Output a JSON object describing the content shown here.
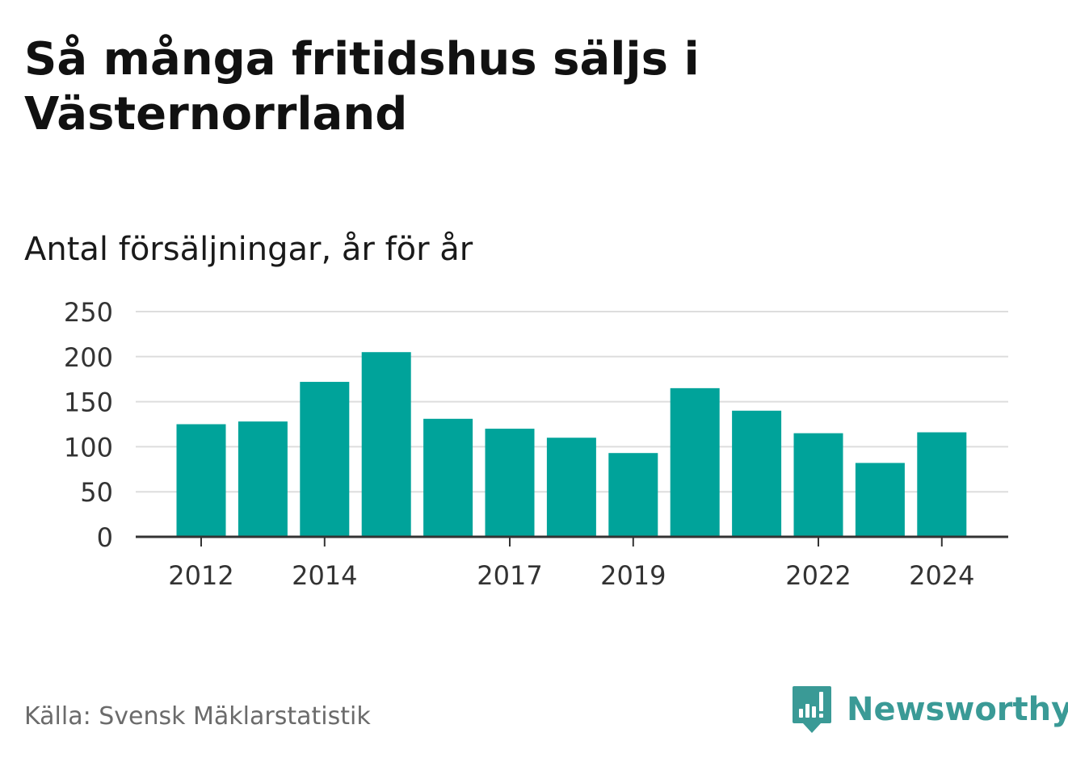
{
  "title": "Så många fritidshus säljs i Västernorrland",
  "subtitle": "Antal försäljningar, år för år",
  "source": "Källa: Svensk Mäklarstatistik",
  "brand": {
    "name": "Newsworthy",
    "icon": "newsworthy-logo-icon",
    "color": "#3a9a96"
  },
  "chart_data": {
    "type": "bar",
    "categories": [
      "2012",
      "2013",
      "2014",
      "2015",
      "2016",
      "2017",
      "2018",
      "2019",
      "2020",
      "2021",
      "2022",
      "2023",
      "2024"
    ],
    "values": [
      125,
      128,
      172,
      205,
      131,
      120,
      110,
      93,
      165,
      140,
      115,
      82,
      116
    ],
    "x_tick_labels": [
      "2012",
      "2014",
      "2017",
      "2019",
      "2022",
      "2024"
    ],
    "y_ticks": [
      0,
      50,
      100,
      150,
      200,
      250
    ],
    "ylim": [
      0,
      250
    ],
    "xlabel": "",
    "ylabel": "",
    "grid": true,
    "legend": "none",
    "bar_color": "#00a39a",
    "grid_color": "#dddddd",
    "axis_color": "#333333"
  }
}
